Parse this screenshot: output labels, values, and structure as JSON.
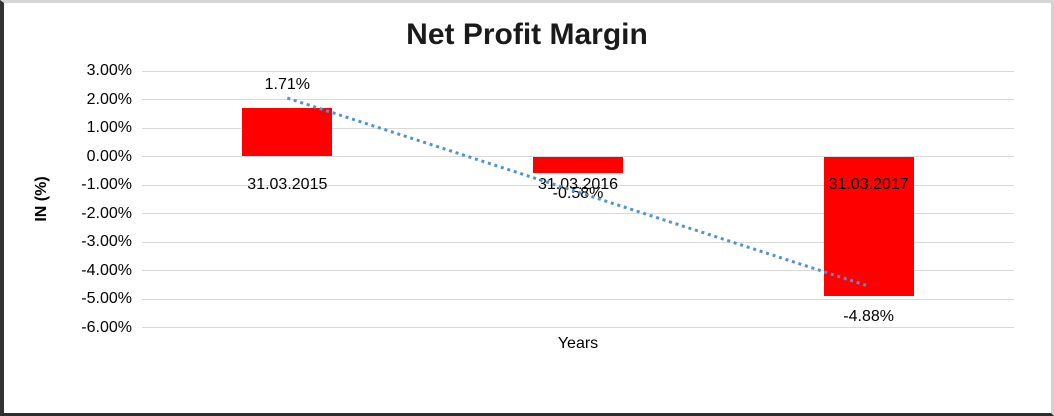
{
  "chart_data": {
    "type": "bar",
    "title": "Net Profit Margin",
    "xlabel": "Years",
    "ylabel": "IN (%)",
    "categories": [
      "31.03.2015",
      "31.03.2016",
      "31.03.2017"
    ],
    "values": [
      1.71,
      -0.58,
      -4.88
    ],
    "value_labels": [
      "1.71%",
      "-0.58%",
      "-4.88%"
    ],
    "ylim": [
      -6,
      3
    ],
    "y_ticks": [
      "3.00%",
      "2.00%",
      "1.00%",
      "0.00%",
      "-1.00%",
      "-2.00%",
      "-3.00%",
      "-4.00%",
      "-5.00%",
      "-6.00%"
    ],
    "grid": true,
    "legend": "none",
    "bar_color": "#ff0000",
    "gridline_color": "#d9d9d9",
    "trendline": {
      "style": "dotted",
      "color": "#4f93cf",
      "start_value_pct": 2.05,
      "end_value_pct": -4.55
    }
  }
}
